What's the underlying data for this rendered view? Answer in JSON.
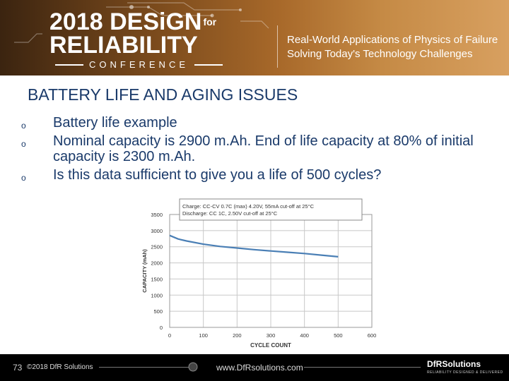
{
  "banner": {
    "year": "2018",
    "word1": "DESiGN",
    "for_word": "for",
    "word2": "RELIABILITY",
    "conference": "CONFERENCE",
    "tagline1": "Real-World Applications of Physics of Failure",
    "tagline2": "Solving Today's Technology Challenges"
  },
  "slide": {
    "title": "BATTERY LIFE AND AGING ISSUES",
    "bullet_mark": "o",
    "bullets": [
      "Battery life example",
      "Nominal capacity is 2900 m.Ah. End of life capacity at 80% of initial capacity is 2300 m.Ah.",
      "Is this data sufficient to give you a life of 500 cycles?"
    ]
  },
  "footer": {
    "page_number": "73",
    "copyright": "©2018 DfR Solutions",
    "url": "www.DfRsolutions.com",
    "brand": "DfRSolutions",
    "brand_sub": "RELIABILITY DESIGNED & DELIVERED"
  },
  "colors": {
    "curve": "#4a7fb5",
    "grid": "#c8c8c8",
    "text": "#1a3a6a"
  },
  "chart_data": {
    "type": "line",
    "xlabel": "CYCLE COUNT",
    "ylabel": "CAPACITY (mAh)",
    "xlim": [
      0,
      600
    ],
    "ylim": [
      0,
      3500
    ],
    "xticks": [
      0,
      100,
      200,
      300,
      400,
      500,
      600
    ],
    "yticks": [
      0,
      500,
      1000,
      1500,
      2000,
      2500,
      3000,
      3500
    ],
    "grid": true,
    "annotation": [
      "Charge:      CC-CV 0.7C (max) 4.20V, 55mA cut-off at 25°C",
      "Discharge:  CC 1C, 2.50V cut-off at 25°C"
    ],
    "x": [
      0,
      25,
      50,
      100,
      150,
      200,
      250,
      300,
      350,
      400,
      450,
      500
    ],
    "y": [
      2850,
      2740,
      2680,
      2580,
      2510,
      2460,
      2410,
      2370,
      2330,
      2290,
      2240,
      2190
    ]
  }
}
